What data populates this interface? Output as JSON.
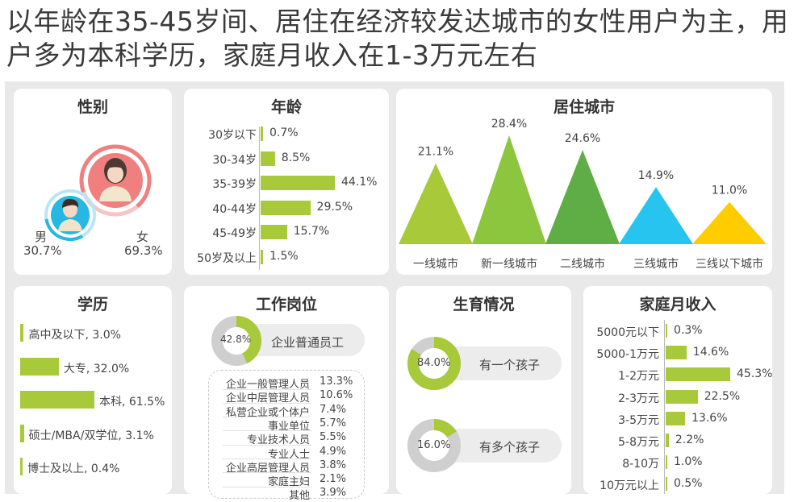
{
  "headline": "以年龄在35-45岁间、居住在经济较发达城市的女性用户为主，用户多为本科学历，家庭月收入在1-3万元左右",
  "colors": {
    "green": "#a8c93a",
    "gray": "#cfcfcf",
    "female": "#f08080",
    "male": "#26b7e3"
  },
  "gender": {
    "title": "性别",
    "male": {
      "label": "男",
      "value": "30.7%",
      "share": 30.7
    },
    "female": {
      "label": "女",
      "value": "69.3%",
      "share": 69.3
    }
  },
  "age": {
    "title": "年龄",
    "rows": [
      {
        "label": "30岁以下",
        "value": 0.7,
        "text": "0.7%"
      },
      {
        "label": "30-34岁",
        "value": 8.5,
        "text": "8.5%"
      },
      {
        "label": "35-39岁",
        "value": 44.1,
        "text": "44.1%"
      },
      {
        "label": "40-44岁",
        "value": 29.5,
        "text": "29.5%"
      },
      {
        "label": "45-49岁",
        "value": 15.7,
        "text": "15.7%"
      },
      {
        "label": "50岁及以上",
        "value": 1.5,
        "text": "1.5%"
      }
    ]
  },
  "city": {
    "title": "居住城市",
    "items": [
      {
        "label": "一线城市",
        "value": 21.1,
        "text": "21.1%",
        "color": "#a8c93a"
      },
      {
        "label": "新一线城市",
        "value": 28.4,
        "text": "28.4%",
        "color": "#8cc63f"
      },
      {
        "label": "二线城市",
        "value": 24.6,
        "text": "24.6%",
        "color": "#5fad45"
      },
      {
        "label": "三线城市",
        "value": 14.9,
        "text": "14.9%",
        "color": "#27c4ef"
      },
      {
        "label": "三线以下城市",
        "value": 11.0,
        "text": "11.0%",
        "color": "#ffcc00"
      }
    ]
  },
  "education": {
    "title": "学历",
    "rows": [
      {
        "label": "高中及以下, 3.0%",
        "value": 3.0
      },
      {
        "label": "大专, 32.0%",
        "value": 32.0
      },
      {
        "label": "本科, 61.5%",
        "value": 61.5
      },
      {
        "label": "硕士/MBA/双学位, 3.1%",
        "value": 3.1
      },
      {
        "label": "博士及以上, 0.4%",
        "value": 0.4
      }
    ]
  },
  "job": {
    "title": "工作岗位",
    "main": {
      "label": "企业普通员工",
      "value": 42.8,
      "text": "42.8%"
    },
    "rows": [
      {
        "label": "企业一般管理人员",
        "value": "13.3%"
      },
      {
        "label": "企业中层管理人员",
        "value": "10.6%"
      },
      {
        "label": "私营企业或个体户",
        "value": "7.4%"
      },
      {
        "label": "事业单位",
        "value": "5.7%"
      },
      {
        "label": "专业技术人员",
        "value": "5.5%"
      },
      {
        "label": "专业人士",
        "value": "4.9%"
      },
      {
        "label": "企业高层管理人员",
        "value": "3.8%"
      },
      {
        "label": "家庭主妇",
        "value": "2.1%"
      },
      {
        "label": "其他",
        "value": "3.9%"
      }
    ]
  },
  "children": {
    "title": "生育情况",
    "items": [
      {
        "label": "有一个孩子",
        "value": 84.0,
        "text": "84.0%"
      },
      {
        "label": "有多个孩子",
        "value": 16.0,
        "text": "16.0%"
      }
    ]
  },
  "income": {
    "title": "家庭月收入",
    "rows": [
      {
        "label": "5000元以下",
        "value": 0.3,
        "text": "0.3%"
      },
      {
        "label": "5000-1万元",
        "value": 14.6,
        "text": "14.6%"
      },
      {
        "label": "1-2万元",
        "value": 45.3,
        "text": "45.3%"
      },
      {
        "label": "2-3万元",
        "value": 22.5,
        "text": "22.5%"
      },
      {
        "label": "3-5万元",
        "value": 13.6,
        "text": "13.6%"
      },
      {
        "label": "5-8万元",
        "value": 2.2,
        "text": "2.2%"
      },
      {
        "label": "8-10万",
        "value": 1.0,
        "text": "1.0%"
      },
      {
        "label": "10万元以上",
        "value": 0.5,
        "text": "0.5%"
      }
    ]
  },
  "chart_data": [
    {
      "type": "pie",
      "title": "性别",
      "categories": [
        "男",
        "女"
      ],
      "values": [
        30.7,
        69.3
      ]
    },
    {
      "type": "bar",
      "title": "年龄",
      "categories": [
        "30岁以下",
        "30-34岁",
        "35-39岁",
        "40-44岁",
        "45-49岁",
        "50岁及以上"
      ],
      "values": [
        0.7,
        8.5,
        44.1,
        29.5,
        15.7,
        1.5
      ]
    },
    {
      "type": "bar",
      "title": "居住城市",
      "categories": [
        "一线城市",
        "新一线城市",
        "二线城市",
        "三线城市",
        "三线以下城市"
      ],
      "values": [
        21.1,
        28.4,
        24.6,
        14.9,
        11.0
      ]
    },
    {
      "type": "bar",
      "title": "学历",
      "categories": [
        "高中及以下",
        "大专",
        "本科",
        "硕士/MBA/双学位",
        "博士及以上"
      ],
      "values": [
        3.0,
        32.0,
        61.5,
        3.1,
        0.4
      ]
    },
    {
      "type": "table",
      "title": "工作岗位",
      "categories": [
        "企业普通员工",
        "企业一般管理人员",
        "企业中层管理人员",
        "私营企业或个体户",
        "事业单位",
        "专业技术人员",
        "专业人士",
        "企业高层管理人员",
        "家庭主妇",
        "其他"
      ],
      "values": [
        42.8,
        13.3,
        10.6,
        7.4,
        5.7,
        5.5,
        4.9,
        3.8,
        2.1,
        3.9
      ]
    },
    {
      "type": "pie",
      "title": "生育情况",
      "categories": [
        "有一个孩子",
        "有多个孩子"
      ],
      "values": [
        84.0,
        16.0
      ]
    },
    {
      "type": "bar",
      "title": "家庭月收入",
      "categories": [
        "5000元以下",
        "5000-1万元",
        "1-2万元",
        "2-3万元",
        "3-5万元",
        "5-8万元",
        "8-10万",
        "10万元以上"
      ],
      "values": [
        0.3,
        14.6,
        45.3,
        22.5,
        13.6,
        2.2,
        1.0,
        0.5
      ]
    }
  ]
}
